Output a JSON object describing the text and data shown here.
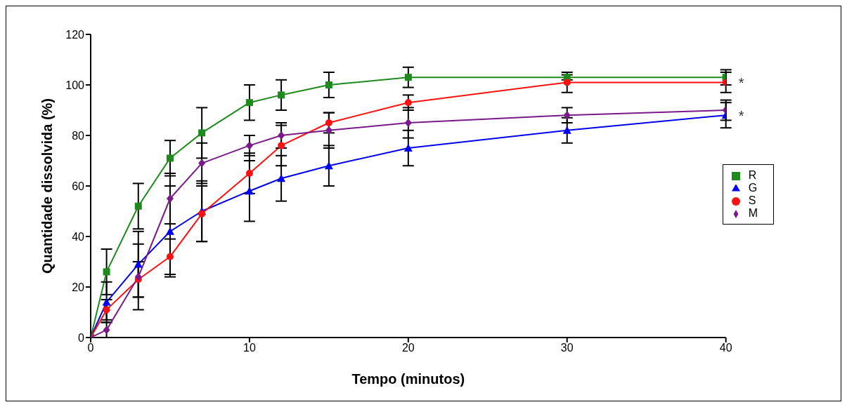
{
  "chart_data": {
    "type": "line",
    "xlabel": "Tempo (minutos)",
    "ylabel": "Quantidade dissolvida (%)",
    "xlim": [
      0,
      40
    ],
    "xticks": [
      0,
      10,
      20,
      30,
      40
    ],
    "ylim": [
      0,
      120
    ],
    "yticks": [
      0,
      20,
      40,
      60,
      80,
      100,
      120
    ],
    "grid": false,
    "legend": "right",
    "line_style": "solid",
    "x": [
      0,
      1,
      3,
      5,
      7,
      10,
      12,
      15,
      20,
      30,
      40
    ],
    "series": [
      {
        "name": "R",
        "color": "#1e8a1e",
        "marker": "square",
        "values": [
          0,
          26,
          52,
          71,
          81,
          93,
          96,
          100,
          103,
          103,
          103
        ],
        "errors": [
          null,
          9,
          9,
          7,
          10,
          7,
          6,
          5,
          4,
          1,
          3
        ]
      },
      {
        "name": "G",
        "color": "#0000ee",
        "marker": "triangle",
        "values": [
          0,
          14,
          29,
          42,
          50,
          58,
          63,
          68,
          75,
          82,
          88
        ],
        "errors": [
          null,
          8,
          13,
          18,
          12,
          12,
          9,
          8,
          7,
          5,
          5
        ]
      },
      {
        "name": "S",
        "color": "#ff1010",
        "marker": "circle",
        "values": [
          0,
          11,
          23,
          32,
          49,
          65,
          76,
          85,
          93,
          101,
          101
        ],
        "errors": [
          null,
          4,
          7,
          7,
          11,
          8,
          8,
          4,
          3,
          4,
          4
        ]
      },
      {
        "name": "M",
        "color": "#7a1a8a",
        "marker": "diamond",
        "values": [
          0,
          3,
          24,
          55,
          69,
          76,
          80,
          82,
          85,
          88,
          90
        ],
        "errors": [
          null,
          3,
          13,
          10,
          8,
          4,
          5,
          7,
          6,
          3,
          4
        ]
      }
    ],
    "annotations": [
      {
        "text": "*",
        "x": 40,
        "y": 101
      },
      {
        "text": "*",
        "x": 40,
        "y": 88
      }
    ]
  }
}
